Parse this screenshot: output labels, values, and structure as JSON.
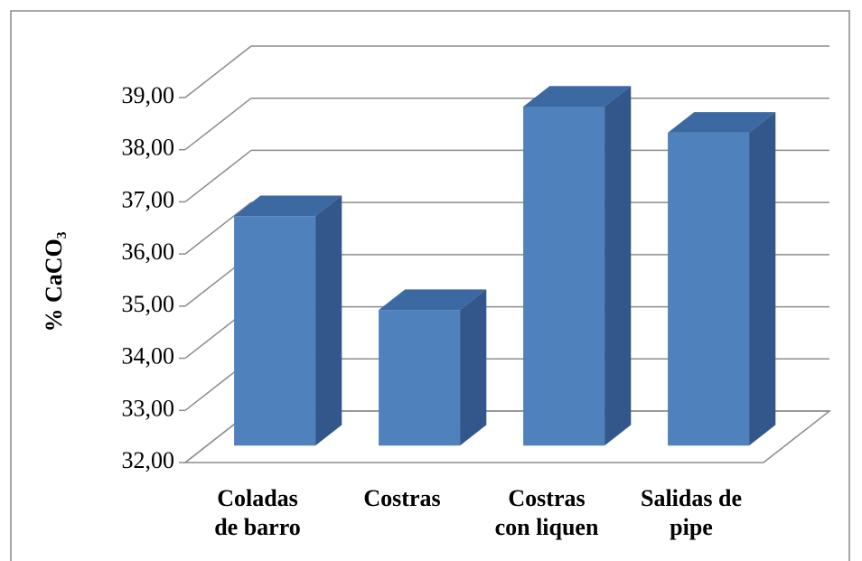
{
  "chart_data": {
    "type": "bar3d",
    "ylabel": "% CaCO₃",
    "categories": [
      "Coladas\nde barro",
      "Costras",
      "Costras\ncon liquen",
      "Salidas de\npipe"
    ],
    "values": [
      36.4,
      34.6,
      38.5,
      38.0
    ],
    "color": "#4f81bd",
    "ylim": [
      32,
      39
    ],
    "yticks": [
      {
        "value": 32,
        "label": "32,00"
      },
      {
        "value": 33,
        "label": "33,00"
      },
      {
        "value": 34,
        "label": "34,00"
      },
      {
        "value": 35,
        "label": "35,00"
      },
      {
        "value": 36,
        "label": "36,00"
      },
      {
        "value": 37,
        "label": "37,00"
      },
      {
        "value": 38,
        "label": "38,00"
      },
      {
        "value": 39,
        "label": "39,00"
      }
    ],
    "grid": true
  }
}
